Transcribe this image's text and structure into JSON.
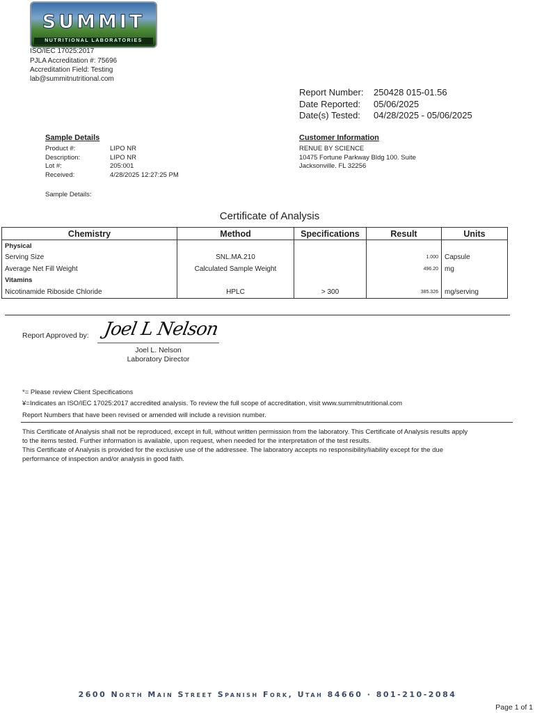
{
  "header": {
    "logo_text": "SUMMIT",
    "logo_subtext": "NUTRITIONAL LABORATORIES",
    "lines": [
      "ISO/IEC 17025:2017",
      "PJLA Accreditation #: 75696",
      "Accreditation Field: Testing",
      "lab@summitnutritional.com"
    ]
  },
  "report": {
    "number_label": "Report Number:",
    "number": "250428 015-01.56",
    "reported_label": "Date Reported:",
    "reported": "05/06/2025",
    "tested_label": "Date(s) Tested:",
    "tested": "04/28/2025 - 05/06/2025"
  },
  "sample": {
    "heading": "Sample Details",
    "rows": [
      {
        "label": "Product #:",
        "value": "LIPO NR"
      },
      {
        "label": "Description:",
        "value": "LIPO NR"
      },
      {
        "label": "Lot #:",
        "value": "205:001"
      },
      {
        "label": "Received:",
        "value": "4/28/2025 12:27:25 PM"
      }
    ],
    "details_label": "Sample Details:"
  },
  "customer": {
    "heading": "Customer Information",
    "lines": [
      "RENUE BY SCIENCE",
      "10475 Fortune Parkway Bldg 100. Suite",
      "Jacksonville. FL 32256"
    ]
  },
  "coa": {
    "title": "Certificate of Analysis",
    "columns": [
      "Chemistry",
      "Method",
      "Specifications",
      "Result",
      "Units"
    ],
    "rows": [
      {
        "group": "Physical"
      },
      {
        "chemistry": "Serving Size",
        "method": "SNL.MA.210",
        "spec": "",
        "result": "1.000",
        "units": "Capsule"
      },
      {
        "chemistry": "Average Net Fill Weight",
        "method": "Calculated Sample Weight",
        "spec": "",
        "result": "496.20",
        "units": "mg"
      },
      {
        "group": "Vitamins"
      },
      {
        "chemistry": "Nicotinamide Riboside Chloride",
        "method": "HPLC",
        "spec": "> 300",
        "result": "385.326",
        "units": "mg/serving"
      }
    ]
  },
  "approval": {
    "label": "Report Approved by:",
    "signature": "Joel L Nelson",
    "name": "Joel L. Nelson",
    "title": "Laboratory Director"
  },
  "notes": [
    "*= Please review Client Specifications",
    "¥=Indicates an ISO/IEC 17025:2017 accredited analysis. To review the full scope of accreditation, visit www.summitnutritional.com",
    "Report Numbers that have been revised or amended will include a revision number."
  ],
  "disclaimer": [
    "This Certificate of Analysis shall not be reproduced, except in full, without written permission from the laboratory. This Certificate of Analysis results apply",
    "to the items tested. Further information is available, upon request, when needed for the interpretation of the test results.",
    "This Certificate of Analysis is provided for the exclusive use of the addressee. The laboratory accepts no responsibility/liability except for the due",
    "performance of inspection and/or analysis in good faith."
  ],
  "footer": {
    "address": "2600 North Main Street Spanish Fork, Utah  84660 · 801-210-2084",
    "page": "Page 1 of 1"
  }
}
